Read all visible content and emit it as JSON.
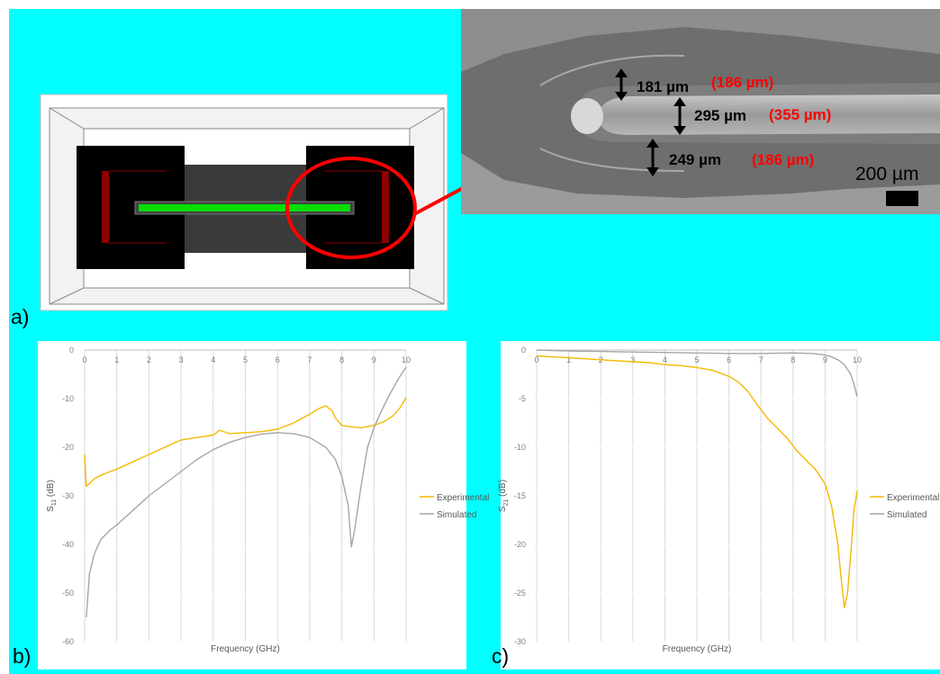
{
  "panels": {
    "a_label": "a)",
    "b_label": "b)",
    "c_label": "c)"
  },
  "colors": {
    "background": "#00ffff",
    "experimental": "#f5b800",
    "simulated": "#a6a6a6",
    "highlight": "#ff0000",
    "conductor": "#00e000",
    "axis_grid": "#d9d9d9",
    "tick_text": "#7f7f7f"
  },
  "micrograph": {
    "measurements": [
      {
        "measured": "181 µm",
        "design": "(186 µm)"
      },
      {
        "measured": "295 µm",
        "design": "(355 µm)"
      },
      {
        "measured": "249 µm",
        "design": "(186 µm)"
      }
    ],
    "scale_bar_label": "200 µm"
  },
  "chart_data": [
    {
      "id": "b",
      "type": "line",
      "xlabel": "Frequency (GHz)",
      "ylabel_main": "S",
      "ylabel_sub": "11",
      "ylabel_unit": " (dB)",
      "xlim": [
        0,
        10
      ],
      "ylim": [
        -60,
        0
      ],
      "xticks": [
        "0",
        "1",
        "2",
        "3",
        "4",
        "5",
        "6",
        "7",
        "8",
        "9",
        "10"
      ],
      "yticks": [
        "0",
        "-10",
        "-20",
        "-30",
        "-40",
        "-50",
        "-60"
      ],
      "legend": "right",
      "series": [
        {
          "name": "Experimental",
          "x": [
            0,
            0.05,
            0.15,
            0.3,
            0.5,
            0.8,
            1.0,
            1.5,
            2.0,
            2.5,
            3.0,
            3.5,
            4.0,
            4.2,
            4.5,
            5.0,
            5.5,
            6.0,
            6.5,
            7.0,
            7.3,
            7.5,
            7.7,
            7.8,
            8.0,
            8.3,
            8.6,
            9.0,
            9.3,
            9.6,
            9.8,
            10.0
          ],
          "y": [
            -21.5,
            -28,
            -27.5,
            -26.5,
            -25.8,
            -25,
            -24.5,
            -23,
            -21.5,
            -20,
            -18.5,
            -18,
            -17.5,
            -16.5,
            -17.2,
            -17,
            -16.8,
            -16.3,
            -15,
            -13.2,
            -12,
            -11.5,
            -12.5,
            -14,
            -15.5,
            -15.8,
            -16,
            -15.5,
            -14.8,
            -13.5,
            -12,
            -9.8
          ]
        },
        {
          "name": "Simulated",
          "x": [
            0.05,
            0.15,
            0.3,
            0.5,
            0.8,
            1.0,
            1.5,
            2.0,
            2.5,
            3.0,
            3.5,
            4.0,
            4.5,
            5.0,
            5.5,
            6.0,
            6.5,
            7.0,
            7.5,
            7.8,
            8.0,
            8.2,
            8.3,
            8.4,
            8.6,
            8.8,
            9.0,
            9.2,
            9.5,
            9.8,
            10.0
          ],
          "y": [
            -55,
            -46,
            -42,
            -39,
            -37,
            -36,
            -33,
            -30,
            -27.5,
            -25,
            -22.5,
            -20.5,
            -19,
            -18,
            -17.3,
            -17,
            -17.2,
            -18,
            -20,
            -22.5,
            -26,
            -32,
            -40.5,
            -37,
            -28,
            -20,
            -16,
            -13,
            -9,
            -5.5,
            -3.5
          ]
        }
      ]
    },
    {
      "id": "c",
      "type": "line",
      "xlabel": "Frequency (GHz)",
      "ylabel_main": "S",
      "ylabel_sub": "21",
      "ylabel_unit": " (dB)",
      "xlim": [
        0,
        10
      ],
      "ylim": [
        -30,
        0
      ],
      "xticks": [
        "0",
        "1",
        "2",
        "3",
        "4",
        "5",
        "6",
        "7",
        "8",
        "9",
        "10"
      ],
      "yticks": [
        "0",
        "-5",
        "-10",
        "-15",
        "-20",
        "-25",
        "-30"
      ],
      "legend": "right",
      "series": [
        {
          "name": "Experimental",
          "x": [
            0,
            0.5,
            1.0,
            1.5,
            2.0,
            2.5,
            3.0,
            3.5,
            4.0,
            4.5,
            5.0,
            5.5,
            6.0,
            6.3,
            6.6,
            6.9,
            7.2,
            7.5,
            7.8,
            8.1,
            8.4,
            8.7,
            9.0,
            9.2,
            9.4,
            9.5,
            9.6,
            9.7,
            9.8,
            9.9,
            10.0
          ],
          "y": [
            -0.6,
            -0.7,
            -0.8,
            -0.9,
            -1.0,
            -1.1,
            -1.2,
            -1.3,
            -1.5,
            -1.6,
            -1.8,
            -2.1,
            -2.7,
            -3.3,
            -4.3,
            -5.7,
            -7.0,
            -8.0,
            -9.0,
            -10.3,
            -11.3,
            -12.3,
            -13.8,
            -16.0,
            -20.0,
            -23.5,
            -26.5,
            -25.0,
            -21.0,
            -16.5,
            -14.5
          ]
        },
        {
          "name": "Simulated",
          "x": [
            0,
            1,
            2,
            3,
            4,
            5,
            6,
            7,
            8,
            8.6,
            9.0,
            9.2,
            9.4,
            9.6,
            9.8,
            9.9,
            10.0
          ],
          "y": [
            0,
            -0.1,
            -0.15,
            -0.2,
            -0.25,
            -0.3,
            -0.35,
            -0.35,
            -0.3,
            -0.35,
            -0.5,
            -0.7,
            -1.0,
            -1.5,
            -2.5,
            -3.5,
            -4.8
          ]
        }
      ]
    }
  ]
}
